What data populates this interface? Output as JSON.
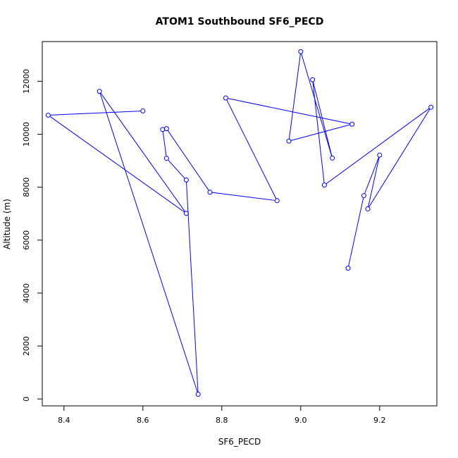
{
  "chart_data": {
    "type": "line",
    "title": "ATOM1 Southbound SF6_PECD",
    "xlabel": "SF6_PECD",
    "ylabel": "Altitude (m)",
    "xlim": [
      8.345,
      9.345
    ],
    "ylim": [
      -260,
      13500
    ],
    "x_ticks": [
      8.4,
      8.6,
      8.8,
      9.0,
      9.2
    ],
    "x_tick_labels": [
      "8.4",
      "8.6",
      "8.8",
      "9.0",
      "9.2"
    ],
    "y_ticks": [
      0,
      2000,
      4000,
      6000,
      8000,
      10000,
      12000
    ],
    "y_tick_labels": [
      "0",
      "2000",
      "4000",
      "6000",
      "8000",
      "10000",
      "12000"
    ],
    "grid": false,
    "line_color": "#0000ff",
    "marker": "open-circle",
    "series": [
      {
        "points": [
          {
            "x": 9.12,
            "y": 4940
          },
          {
            "x": 9.16,
            "y": 7680
          },
          {
            "x": 9.2,
            "y": 9210
          },
          {
            "x": 9.17,
            "y": 7180
          },
          {
            "x": 9.33,
            "y": 11020
          },
          {
            "x": 9.06,
            "y": 8080
          },
          {
            "x": 9.03,
            "y": 12060
          },
          {
            "x": 9.08,
            "y": 9100
          },
          {
            "x": 9.0,
            "y": 13120
          },
          {
            "x": 8.97,
            "y": 9740
          },
          {
            "x": 9.13,
            "y": 10380
          },
          {
            "x": 8.81,
            "y": 11370
          },
          {
            "x": 8.94,
            "y": 7490
          },
          {
            "x": 8.77,
            "y": 7810
          },
          {
            "x": 8.66,
            "y": 10210
          },
          {
            "x": 8.65,
            "y": 10180
          },
          {
            "x": 8.66,
            "y": 9090
          },
          {
            "x": 8.71,
            "y": 8270
          },
          {
            "x": 8.74,
            "y": 180
          },
          {
            "x": 8.49,
            "y": 11620
          },
          {
            "x": 8.71,
            "y": 7010
          },
          {
            "x": 8.36,
            "y": 10720
          },
          {
            "x": 8.6,
            "y": 10880
          }
        ]
      }
    ]
  },
  "notes": {
    "draw_order": "points listed in path order"
  }
}
